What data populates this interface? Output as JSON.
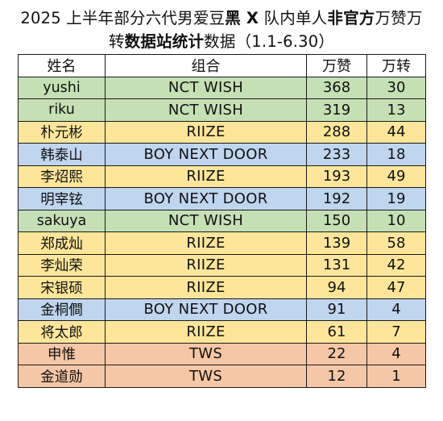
{
  "title_segments": [
    {
      "text": "2025 上半年部分六代男爱豆",
      "bold": false
    },
    {
      "text": "黑 X",
      "bold": true
    },
    {
      "text": " 队内单人",
      "bold": false
    },
    {
      "text": "非官方",
      "bold": true
    },
    {
      "text": "万赞万",
      "bold": false
    }
  ],
  "title_line2_segments": [
    {
      "text": "转",
      "bold": false
    },
    {
      "text": "数据站统计",
      "bold": true
    },
    {
      "text": "数据（1.1-6.30）",
      "bold": false
    }
  ],
  "headers": {
    "name": "姓名",
    "group": "组合",
    "likes": "万赞",
    "reposts": "万转"
  },
  "group_colors": {
    "NCT WISH": "#c6e0b5",
    "RIIZE": "#fde69a",
    "BOY NEXT DOOR": "#c0d5ee",
    "TWS": "#f6c7a6"
  },
  "rows": [
    {
      "name": "yushi",
      "group": "NCT WISH",
      "likes": "368",
      "reposts": "30"
    },
    {
      "name": "riku",
      "group": "NCT WISH",
      "likes": "319",
      "reposts": "13"
    },
    {
      "name": "朴元彬",
      "group": "RIIZE",
      "likes": "288",
      "reposts": "44"
    },
    {
      "name": "韩泰山",
      "group": "BOY NEXT DOOR",
      "likes": "233",
      "reposts": "18"
    },
    {
      "name": "李炤熙",
      "group": "RIIZE",
      "likes": "193",
      "reposts": "49"
    },
    {
      "name": "明宰铉",
      "group": "BOY NEXT DOOR",
      "likes": "192",
      "reposts": "19"
    },
    {
      "name": "sakuya",
      "group": "NCT WISH",
      "likes": "150",
      "reposts": "10"
    },
    {
      "name": "郑成灿",
      "group": "RIIZE",
      "likes": "139",
      "reposts": "58"
    },
    {
      "name": "李灿荣",
      "group": "RIIZE",
      "likes": "131",
      "reposts": "42"
    },
    {
      "name": "宋银硕",
      "group": "RIIZE",
      "likes": "94",
      "reposts": "47"
    },
    {
      "name": "金桐僴",
      "group": "BOY NEXT DOOR",
      "likes": "91",
      "reposts": "4"
    },
    {
      "name": "将太郎",
      "group": "RIIZE",
      "likes": "61",
      "reposts": "7"
    },
    {
      "name": "申惟",
      "group": "TWS",
      "likes": "22",
      "reposts": "4"
    },
    {
      "name": "金道勋",
      "group": "TWS",
      "likes": "12",
      "reposts": "1"
    }
  ]
}
